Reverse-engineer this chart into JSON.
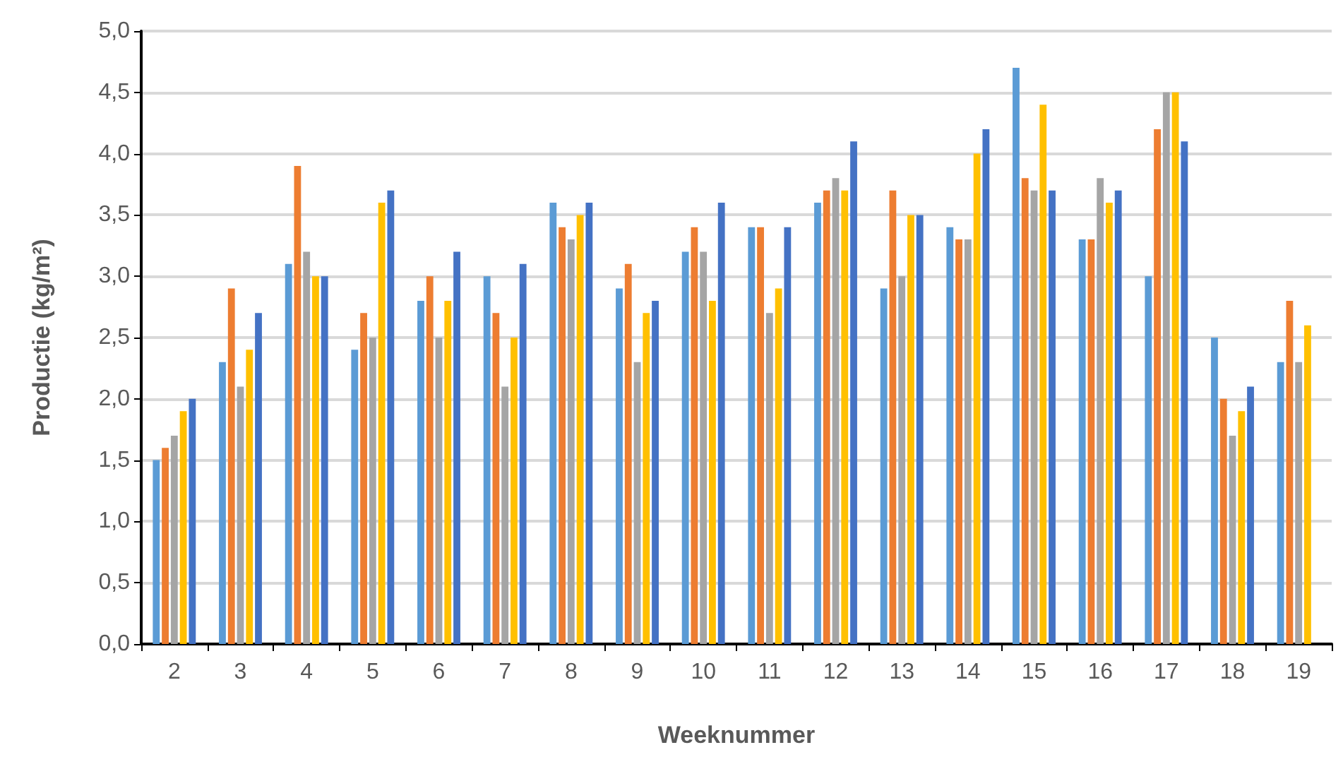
{
  "chart_data": {
    "type": "bar",
    "xlabel": "Weeknummer",
    "ylabel": "Productie (kg/m²)",
    "categories": [
      "2",
      "3",
      "4",
      "5",
      "6",
      "7",
      "8",
      "9",
      "10",
      "11",
      "12",
      "13",
      "14",
      "15",
      "16",
      "17",
      "18",
      "19"
    ],
    "series": [
      {
        "color": "#5b9bd5",
        "values": [
          1.5,
          2.3,
          3.1,
          2.4,
          2.8,
          3.0,
          3.6,
          2.9,
          3.2,
          3.4,
          3.6,
          2.9,
          3.4,
          4.7,
          3.3,
          3.0,
          2.5,
          2.3
        ]
      },
      {
        "color": "#ed7d31",
        "values": [
          1.6,
          2.9,
          3.9,
          2.7,
          3.0,
          2.7,
          3.4,
          3.1,
          3.4,
          3.4,
          3.7,
          3.7,
          3.3,
          3.8,
          3.3,
          4.2,
          2.0,
          2.8
        ]
      },
      {
        "color": "#a5a5a5",
        "values": [
          1.7,
          2.1,
          3.2,
          2.5,
          2.5,
          2.1,
          3.3,
          2.3,
          3.2,
          2.7,
          3.8,
          3.0,
          3.3,
          3.7,
          3.8,
          4.5,
          1.7,
          2.3
        ]
      },
      {
        "color": "#ffc000",
        "values": [
          1.9,
          2.4,
          3.0,
          3.6,
          2.8,
          2.5,
          3.5,
          2.7,
          2.8,
          2.9,
          3.7,
          3.5,
          4.0,
          4.4,
          3.6,
          4.5,
          1.9,
          2.6
        ]
      },
      {
        "color": "#4472c4",
        "values": [
          2.0,
          2.7,
          3.0,
          3.7,
          3.2,
          3.1,
          3.6,
          2.8,
          3.6,
          3.4,
          4.1,
          3.5,
          4.2,
          3.7,
          3.7,
          4.1,
          2.1,
          null
        ]
      }
    ],
    "ylim": [
      0,
      5
    ],
    "yticks": [
      {
        "value": 0,
        "label": "0,0"
      },
      {
        "value": 0.5,
        "label": "0,5"
      },
      {
        "value": 1,
        "label": "1,0"
      },
      {
        "value": 1.5,
        "label": "1,5"
      },
      {
        "value": 2,
        "label": "2,0"
      },
      {
        "value": 2.5,
        "label": "2,5"
      },
      {
        "value": 3,
        "label": "3,0"
      },
      {
        "value": 3.5,
        "label": "3,5"
      },
      {
        "value": 4,
        "label": "4,0"
      },
      {
        "value": 4.5,
        "label": "4,5"
      },
      {
        "value": 5,
        "label": "5,0"
      }
    ],
    "grid": "y"
  }
}
